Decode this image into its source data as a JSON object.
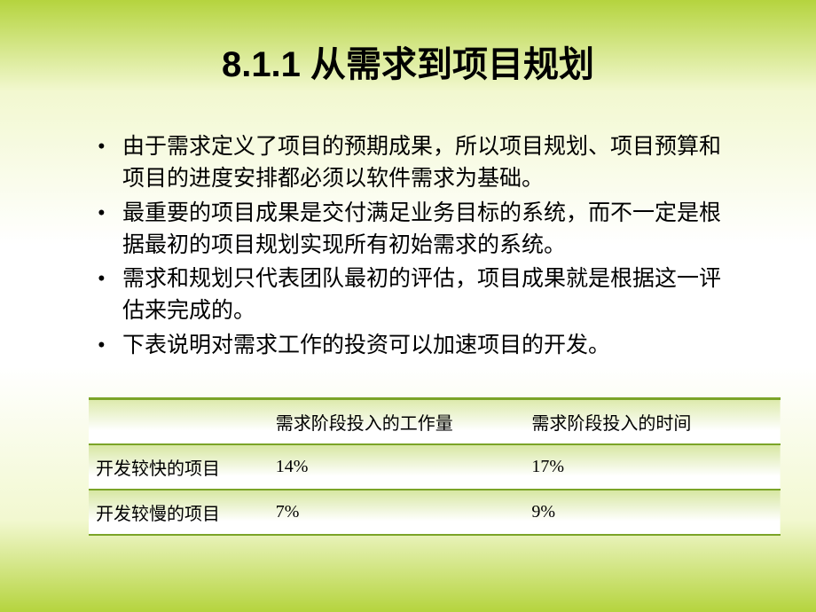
{
  "title": "8.1.1 从需求到项目规划",
  "bullets": [
    "由于需求定义了项目的预期成果，所以项目规划、项目预算和项目的进度安排都必须以软件需求为基础。",
    "最重要的项目成果是交付满足业务目标的系统，而不一定是根据最初的项目规划实现所有初始需求的系统。",
    "需求和规划只代表团队最初的评估，项目成果就是根据这一评估来完成的。",
    "下表说明对需求工作的投资可以加速项目的开发。"
  ],
  "table": {
    "columns": [
      "",
      "需求阶段投入的工作量",
      "需求阶段投入的时间"
    ],
    "rows": [
      [
        "开发较快的项目",
        "14%",
        "17%"
      ],
      [
        "开发较慢的项目",
        "7%",
        "9%"
      ]
    ],
    "column_widths": [
      "26%",
      "37%",
      "37%"
    ],
    "header_gradient": [
      "#dbe9a8",
      "#ffffff"
    ],
    "row_gradient": [
      "#d6e6a0",
      "#ffffff"
    ],
    "border_color": "#7ba428",
    "font_size": 20
  },
  "styling": {
    "page_bg_gradient": [
      "#b5d43e",
      "#f2f8d0",
      "#ffffff",
      "#ffffff",
      "#f2f8d0",
      "#b5d43e"
    ],
    "title_fontsize": 40,
    "bullet_fontsize": 25
  }
}
